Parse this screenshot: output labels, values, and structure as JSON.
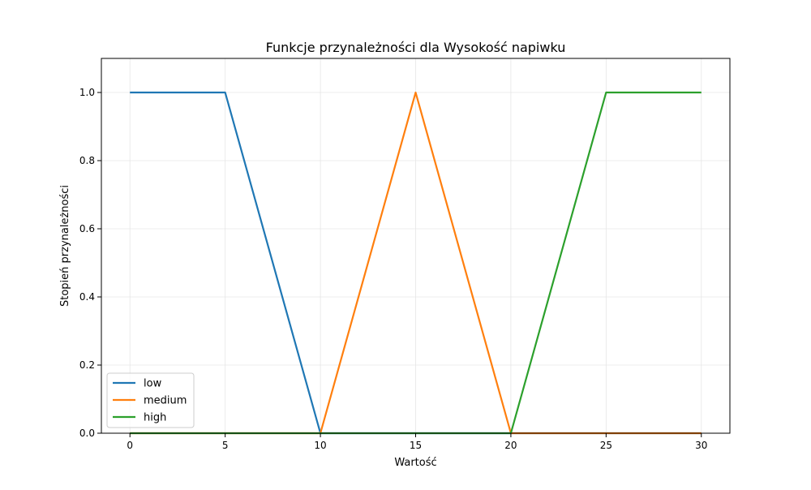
{
  "chart_data": {
    "type": "line",
    "title": "Funkcje przynależności dla Wysokość napiwku",
    "xlabel": "Wartość",
    "ylabel": "Stopień przynależności",
    "xlim": [
      -1.5,
      31.5
    ],
    "ylim": [
      0,
      1.1
    ],
    "x_ticks": [
      0,
      5,
      10,
      15,
      20,
      25,
      30
    ],
    "y_ticks": [
      0.0,
      0.2,
      0.4,
      0.6,
      0.8,
      1.0
    ],
    "x_tick_labels": [
      "0",
      "5",
      "10",
      "15",
      "20",
      "25",
      "30"
    ],
    "y_tick_labels": [
      "0.0",
      "0.2",
      "0.4",
      "0.6",
      "0.8",
      "1.0"
    ],
    "grid": true,
    "legend_position": "lower-left",
    "series": [
      {
        "name": "low",
        "color": "#1f77b4",
        "x": [
          0,
          5,
          10,
          30
        ],
        "y": [
          1,
          1,
          0,
          0
        ]
      },
      {
        "name": "medium",
        "color": "#ff7f0e",
        "x": [
          0,
          10,
          15,
          20,
          30
        ],
        "y": [
          0,
          0,
          1,
          0,
          0
        ]
      },
      {
        "name": "high",
        "color": "#2ca02c",
        "x": [
          0,
          20,
          25,
          30
        ],
        "y": [
          0,
          0,
          1,
          1
        ]
      }
    ]
  }
}
